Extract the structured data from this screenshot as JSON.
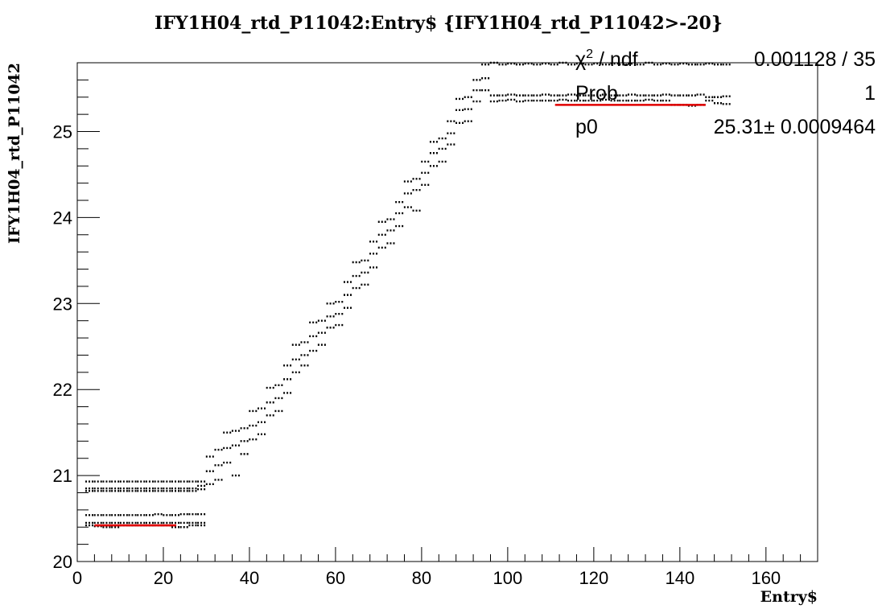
{
  "chart_data": {
    "type": "scatter",
    "title": "IFY1H04_rtd_P11042:Entry$ {IFY1H04_rtd_P11042>-20}",
    "xlabel": "Entry$",
    "ylabel": "IFY1H04_rtd_P11042",
    "xlim": [
      0,
      172
    ],
    "ylim": [
      20,
      25.8
    ],
    "x_ticks": [
      "0",
      "20",
      "40",
      "60",
      "80",
      "100",
      "120",
      "140",
      "160"
    ],
    "y_ticks": [
      "20",
      "21",
      "22",
      "23",
      "24",
      "25"
    ],
    "grid": false,
    "points": [
      [
        3,
        20.93
      ],
      [
        5,
        20.93
      ],
      [
        7,
        20.93
      ],
      [
        9,
        20.93
      ],
      [
        11,
        20.93
      ],
      [
        13,
        20.93
      ],
      [
        15,
        20.93
      ],
      [
        17,
        20.93
      ],
      [
        19,
        20.93
      ],
      [
        21,
        20.93
      ],
      [
        23,
        20.93
      ],
      [
        25,
        20.93
      ],
      [
        27,
        20.93
      ],
      [
        29,
        20.93
      ],
      [
        3,
        20.85
      ],
      [
        5,
        20.85
      ],
      [
        7,
        20.85
      ],
      [
        9,
        20.85
      ],
      [
        11,
        20.85
      ],
      [
        13,
        20.85
      ],
      [
        15,
        20.85
      ],
      [
        17,
        20.85
      ],
      [
        19,
        20.85
      ],
      [
        21,
        20.85
      ],
      [
        23,
        20.85
      ],
      [
        25,
        20.85
      ],
      [
        27,
        20.85
      ],
      [
        29,
        20.88
      ],
      [
        3,
        20.82
      ],
      [
        5,
        20.82
      ],
      [
        7,
        20.82
      ],
      [
        9,
        20.82
      ],
      [
        11,
        20.82
      ],
      [
        13,
        20.82
      ],
      [
        15,
        20.82
      ],
      [
        17,
        20.82
      ],
      [
        19,
        20.82
      ],
      [
        21,
        20.82
      ],
      [
        23,
        20.82
      ],
      [
        25,
        20.82
      ],
      [
        27,
        20.82
      ],
      [
        29,
        20.84
      ],
      [
        3,
        20.54
      ],
      [
        5,
        20.54
      ],
      [
        7,
        20.54
      ],
      [
        9,
        20.54
      ],
      [
        11,
        20.54
      ],
      [
        13,
        20.54
      ],
      [
        15,
        20.54
      ],
      [
        17,
        20.54
      ],
      [
        19,
        20.55
      ],
      [
        21,
        20.54
      ],
      [
        23,
        20.54
      ],
      [
        25,
        20.55
      ],
      [
        27,
        20.55
      ],
      [
        29,
        20.55
      ],
      [
        3,
        20.45
      ],
      [
        5,
        20.45
      ],
      [
        7,
        20.45
      ],
      [
        9,
        20.45
      ],
      [
        11,
        20.45
      ],
      [
        13,
        20.45
      ],
      [
        15,
        20.45
      ],
      [
        17,
        20.45
      ],
      [
        19,
        20.45
      ],
      [
        21,
        20.45
      ],
      [
        23,
        20.45
      ],
      [
        25,
        20.45
      ],
      [
        27,
        20.45
      ],
      [
        29,
        20.45
      ],
      [
        3,
        20.42
      ],
      [
        5,
        20.41
      ],
      [
        7,
        20.4
      ],
      [
        9,
        20.4
      ],
      [
        11,
        20.42
      ],
      [
        13,
        20.42
      ],
      [
        15,
        20.42
      ],
      [
        17,
        20.42
      ],
      [
        19,
        20.42
      ],
      [
        21,
        20.42
      ],
      [
        23,
        20.4
      ],
      [
        25,
        20.4
      ],
      [
        27,
        20.42
      ],
      [
        29,
        20.42
      ],
      [
        31,
        21.22
      ],
      [
        31,
        21.05
      ],
      [
        31,
        20.9
      ],
      [
        33,
        21.3
      ],
      [
        33,
        21.12
      ],
      [
        33,
        20.95
      ],
      [
        35,
        21.5
      ],
      [
        35,
        21.32
      ],
      [
        35,
        21.15
      ],
      [
        37,
        21.52
      ],
      [
        37,
        21.35
      ],
      [
        37,
        21.0
      ],
      [
        39,
        21.55
      ],
      [
        39,
        21.4
      ],
      [
        39,
        21.25
      ],
      [
        41,
        21.75
      ],
      [
        41,
        21.58
      ],
      [
        41,
        21.42
      ],
      [
        43,
        21.78
      ],
      [
        43,
        21.62
      ],
      [
        43,
        21.48
      ],
      [
        45,
        22.02
      ],
      [
        45,
        21.85
      ],
      [
        45,
        21.7
      ],
      [
        47,
        22.05
      ],
      [
        47,
        21.9
      ],
      [
        47,
        21.75
      ],
      [
        49,
        22.28
      ],
      [
        49,
        22.12
      ],
      [
        49,
        21.96
      ],
      [
        51,
        22.52
      ],
      [
        51,
        22.35
      ],
      [
        51,
        22.2
      ],
      [
        53,
        22.55
      ],
      [
        53,
        22.4
      ],
      [
        53,
        22.28
      ],
      [
        55,
        22.78
      ],
      [
        55,
        22.62
      ],
      [
        55,
        22.45
      ],
      [
        57,
        22.8
      ],
      [
        57,
        22.66
      ],
      [
        57,
        22.52
      ],
      [
        59,
        23.0
      ],
      [
        59,
        22.85
      ],
      [
        59,
        22.72
      ],
      [
        61,
        23.02
      ],
      [
        61,
        22.88
      ],
      [
        61,
        22.75
      ],
      [
        63,
        23.25
      ],
      [
        63,
        23.1
      ],
      [
        63,
        22.95
      ],
      [
        65,
        23.48
      ],
      [
        65,
        23.32
      ],
      [
        65,
        23.18
      ],
      [
        67,
        23.5
      ],
      [
        67,
        23.36
      ],
      [
        67,
        23.22
      ],
      [
        69,
        23.72
      ],
      [
        69,
        23.58
      ],
      [
        69,
        23.42
      ],
      [
        71,
        23.95
      ],
      [
        71,
        23.8
      ],
      [
        71,
        23.65
      ],
      [
        73,
        23.98
      ],
      [
        73,
        23.85
      ],
      [
        73,
        23.7
      ],
      [
        75,
        24.18
      ],
      [
        75,
        24.05
      ],
      [
        75,
        23.9
      ],
      [
        77,
        24.42
      ],
      [
        77,
        24.28
      ],
      [
        77,
        24.12
      ],
      [
        79,
        24.45
      ],
      [
        79,
        24.32
      ],
      [
        79,
        24.08
      ],
      [
        81,
        24.65
      ],
      [
        81,
        24.52
      ],
      [
        81,
        24.38
      ],
      [
        83,
        24.88
      ],
      [
        83,
        24.75
      ],
      [
        83,
        24.6
      ],
      [
        85,
        24.92
      ],
      [
        85,
        24.8
      ],
      [
        85,
        24.65
      ],
      [
        87,
        25.12
      ],
      [
        87,
        24.98
      ],
      [
        87,
        24.85
      ],
      [
        89,
        25.38
      ],
      [
        89,
        25.25
      ],
      [
        89,
        25.1
      ],
      [
        91,
        25.4
      ],
      [
        91,
        25.26
      ],
      [
        91,
        25.12
      ],
      [
        93,
        25.6
      ],
      [
        93,
        25.48
      ],
      [
        93,
        25.35
      ],
      [
        95,
        25.78
      ],
      [
        95,
        25.62
      ],
      [
        95,
        25.48
      ],
      [
        97,
        25.8
      ],
      [
        97,
        25.42
      ],
      [
        97,
        25.35
      ],
      [
        99,
        25.78
      ],
      [
        99,
        25.42
      ],
      [
        99,
        25.36
      ],
      [
        101,
        25.79
      ],
      [
        101,
        25.43
      ],
      [
        101,
        25.37
      ],
      [
        103,
        25.78
      ],
      [
        103,
        25.42
      ],
      [
        103,
        25.35
      ],
      [
        105,
        25.79
      ],
      [
        105,
        25.42
      ],
      [
        105,
        25.36
      ],
      [
        107,
        25.78
      ],
      [
        107,
        25.42
      ],
      [
        107,
        25.36
      ],
      [
        109,
        25.79
      ],
      [
        109,
        25.43
      ],
      [
        109,
        25.36
      ],
      [
        111,
        25.78
      ],
      [
        111,
        25.42
      ],
      [
        111,
        25.36
      ],
      [
        113,
        25.8
      ],
      [
        113,
        25.42
      ],
      [
        113,
        25.37
      ],
      [
        115,
        25.78
      ],
      [
        115,
        25.43
      ],
      [
        115,
        25.36
      ],
      [
        117,
        25.79
      ],
      [
        117,
        25.42
      ],
      [
        117,
        25.36
      ],
      [
        119,
        25.78
      ],
      [
        119,
        25.42
      ],
      [
        119,
        25.36
      ],
      [
        121,
        25.79
      ],
      [
        121,
        25.42
      ],
      [
        121,
        25.36
      ],
      [
        123,
        25.78
      ],
      [
        123,
        25.43
      ],
      [
        123,
        25.37
      ],
      [
        125,
        25.79
      ],
      [
        125,
        25.42
      ],
      [
        125,
        25.36
      ],
      [
        127,
        25.78
      ],
      [
        127,
        25.42
      ],
      [
        127,
        25.36
      ],
      [
        129,
        25.79
      ],
      [
        129,
        25.43
      ],
      [
        129,
        25.36
      ],
      [
        131,
        25.78
      ],
      [
        131,
        25.42
      ],
      [
        131,
        25.36
      ],
      [
        133,
        25.8
      ],
      [
        133,
        25.42
      ],
      [
        133,
        25.37
      ],
      [
        135,
        25.78
      ],
      [
        135,
        25.42
      ],
      [
        135,
        25.36
      ],
      [
        137,
        25.79
      ],
      [
        137,
        25.43
      ],
      [
        137,
        25.36
      ],
      [
        139,
        25.78
      ],
      [
        139,
        25.42
      ],
      [
        139,
        25.31
      ],
      [
        141,
        25.79
      ],
      [
        141,
        25.42
      ],
      [
        141,
        25.31
      ],
      [
        143,
        25.78
      ],
      [
        143,
        25.42
      ],
      [
        143,
        25.3
      ],
      [
        145,
        25.78
      ],
      [
        145,
        25.43
      ],
      [
        145,
        25.31
      ],
      [
        147,
        25.79
      ],
      [
        147,
        25.4
      ],
      [
        147,
        25.36
      ],
      [
        149,
        25.78
      ],
      [
        149,
        25.4
      ],
      [
        149,
        25.33
      ],
      [
        151,
        25.78
      ],
      [
        151,
        25.41
      ],
      [
        151,
        25.32
      ]
    ],
    "fits": [
      {
        "x": [
          4,
          23
        ],
        "y": 20.42,
        "color": "#e00000"
      },
      {
        "x": [
          111,
          146
        ],
        "y": 25.31,
        "color": "#e00000"
      }
    ],
    "stats_box": {
      "position": "top-right",
      "rows": [
        {
          "label_base": "χ",
          "label_sup": "2",
          "label_rest": " / ndf",
          "value": "0.001128 / 35"
        },
        {
          "label": "Prob",
          "value": "1"
        },
        {
          "label": "p0",
          "value": "25.31± 0.0009464"
        }
      ]
    }
  }
}
